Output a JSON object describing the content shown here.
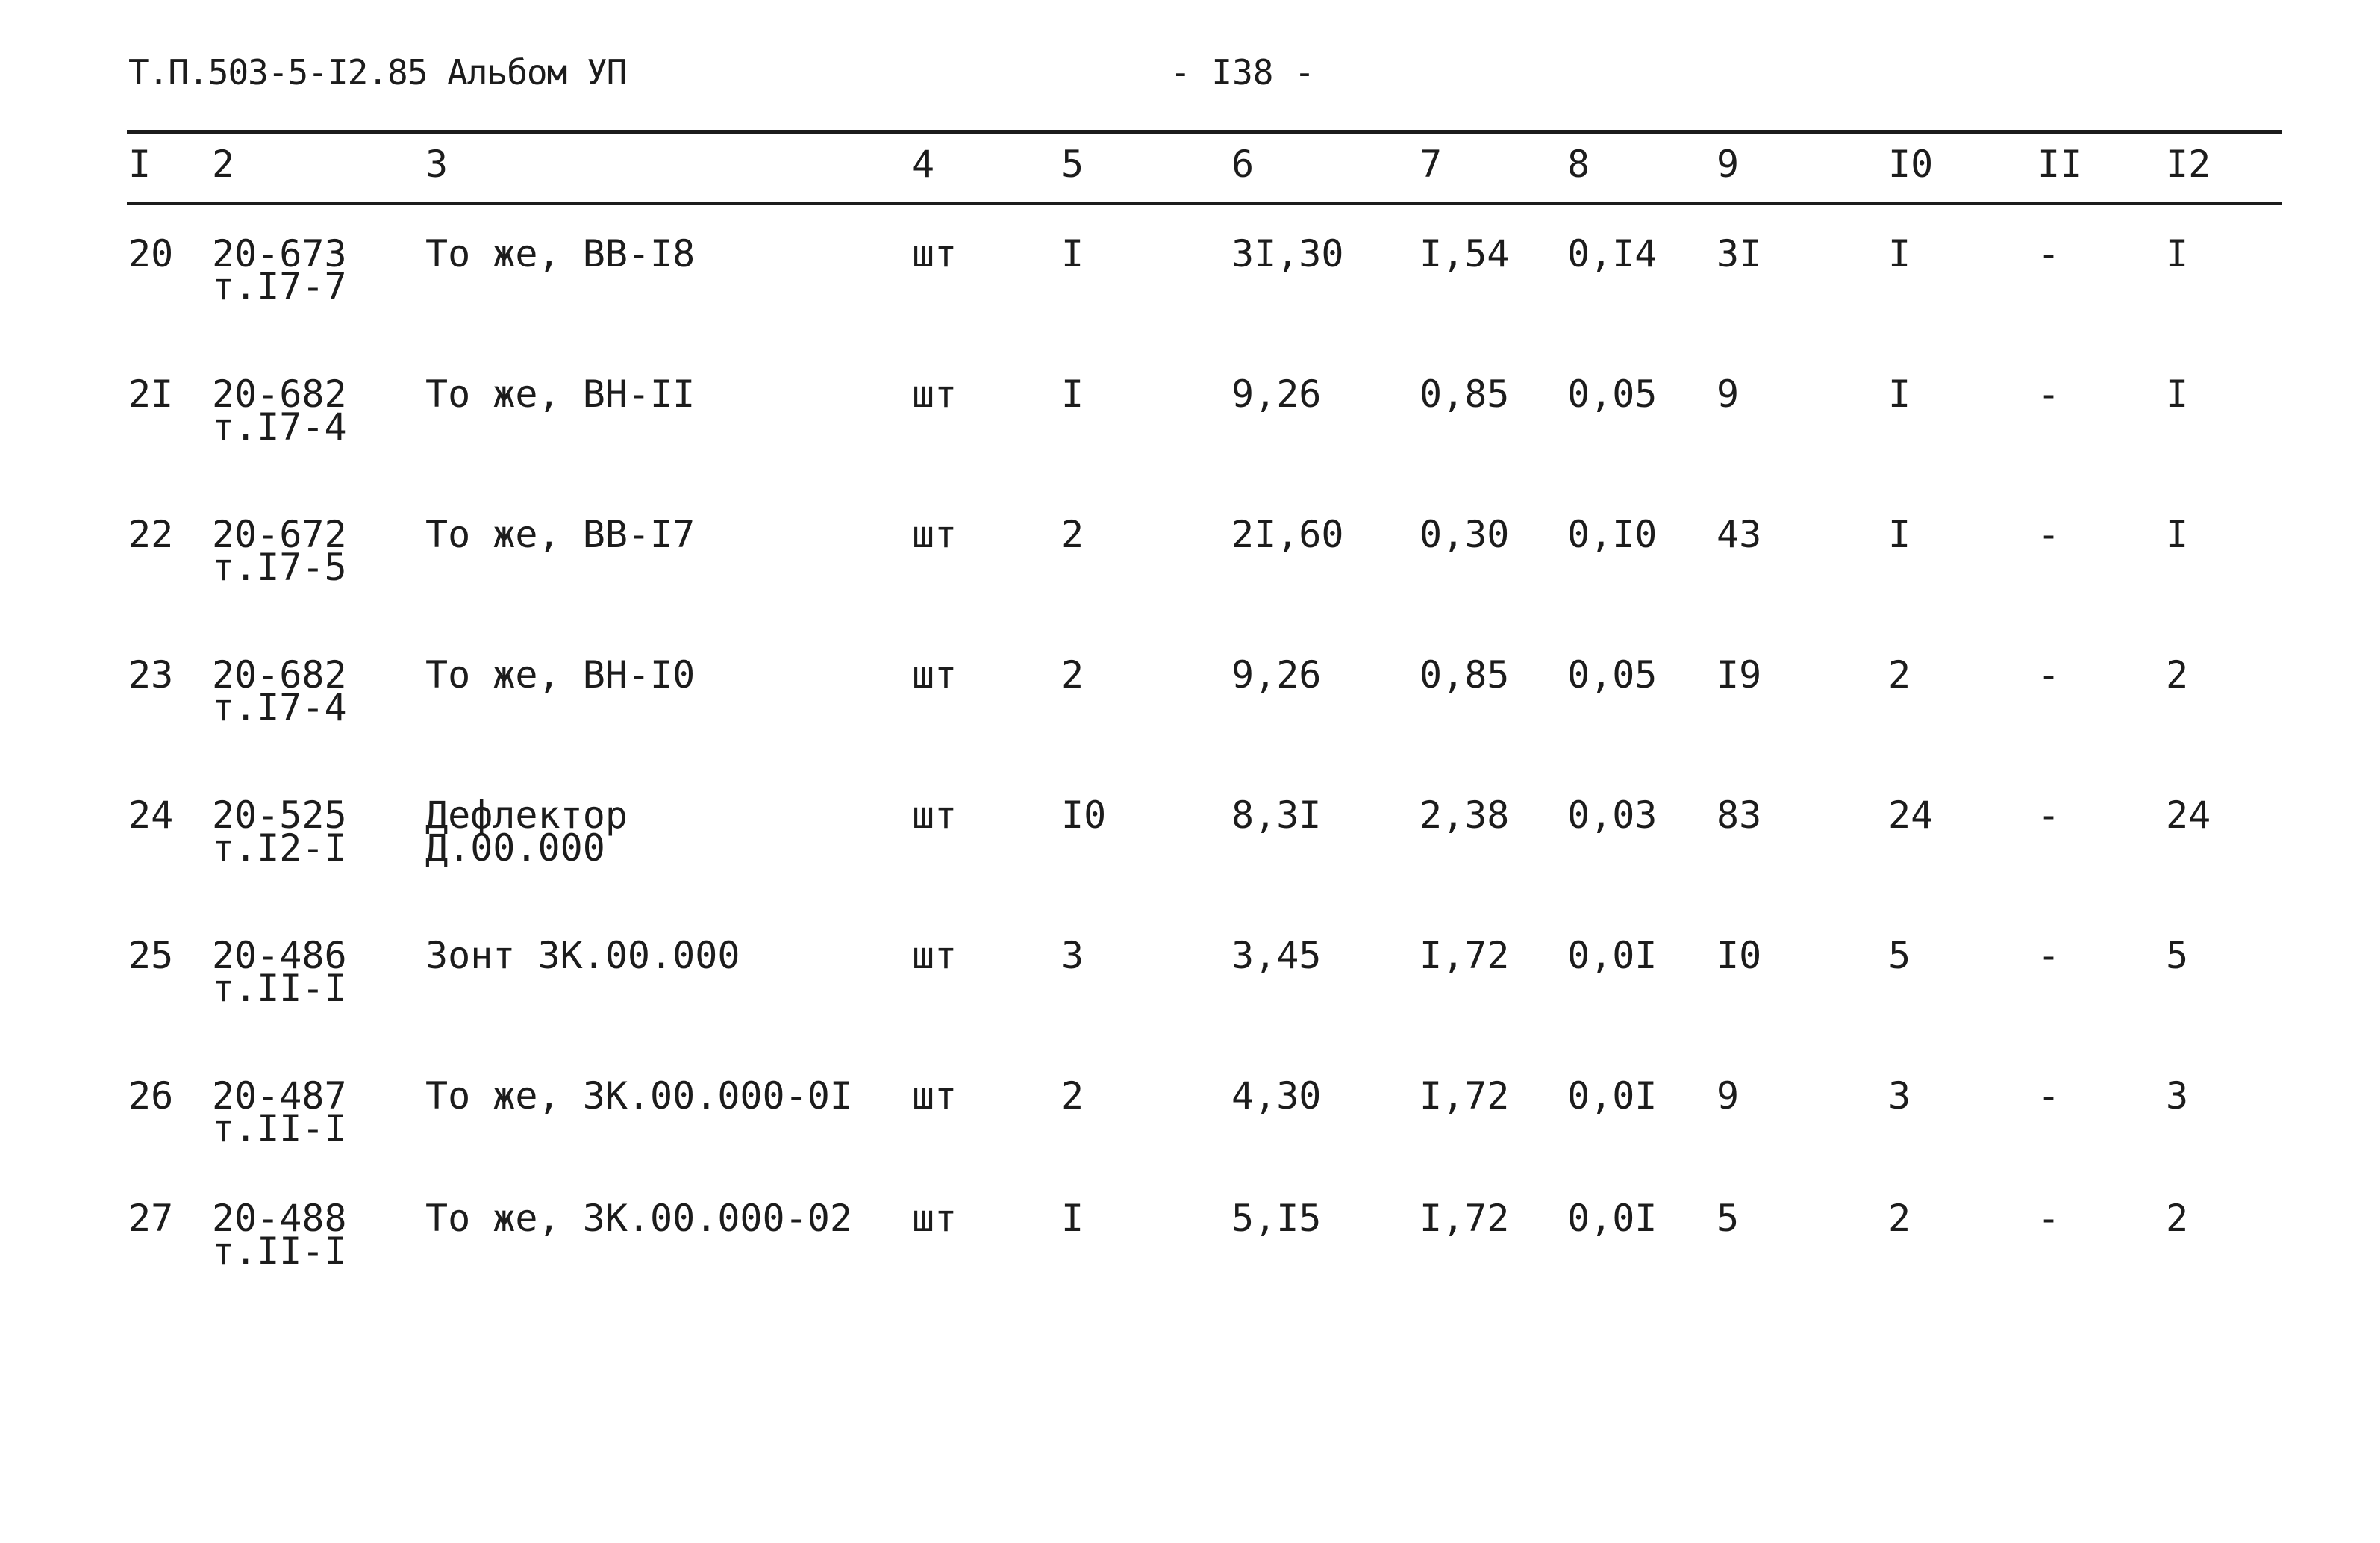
{
  "header": {
    "title": "Т.П.503-5-I2.85 Альбом УП",
    "page_number": "- I38 -"
  },
  "columns": [
    "I",
    "2",
    "3",
    "4",
    "5",
    "6",
    "7",
    "8",
    "9",
    "I0",
    "II",
    "I2"
  ],
  "rows": [
    {
      "no": "20",
      "code": "20-673",
      "ref": "т.I7-7",
      "name": "То же, ВВ-I8",
      "name2": "",
      "unit": "шт",
      "c5": "I",
      "c6": "3I,30",
      "c7": "I,54",
      "c8": "0,I4",
      "c9": "3I",
      "c10": "I",
      "c11": "-",
      "c12": "I"
    },
    {
      "no": "2I",
      "code": "20-682",
      "ref": "т.I7-4",
      "name": "То же, ВН-II",
      "name2": "",
      "unit": "шт",
      "c5": "I",
      "c6": "9,26",
      "c7": "0,85",
      "c8": "0,05",
      "c9": "9",
      "c10": "I",
      "c11": "-",
      "c12": "I"
    },
    {
      "no": "22",
      "code": "20-672",
      "ref": "т.I7-5",
      "name": "То же, ВВ-I7",
      "name2": "",
      "unit": "шт",
      "c5": "2",
      "c6": "2I,60",
      "c7": "0,30",
      "c8": "0,I0",
      "c9": "43",
      "c10": "I",
      "c11": "-",
      "c12": "I"
    },
    {
      "no": "23",
      "code": "20-682",
      "ref": "т.I7-4",
      "name": "То же, ВН-I0",
      "name2": "",
      "unit": "шт",
      "c5": "2",
      "c6": "9,26",
      "c7": "0,85",
      "c8": "0,05",
      "c9": "I9",
      "c10": "2",
      "c11": "-",
      "c12": "2"
    },
    {
      "no": "24",
      "code": "20-525",
      "ref": "т.I2-I",
      "name": "Дефлектор",
      "name2": "Д.00.000",
      "unit": "шт",
      "c5": "I0",
      "c6": "8,3I",
      "c7": "2,38",
      "c8": "0,03",
      "c9": "83",
      "c10": "24",
      "c11": "-",
      "c12": "24"
    },
    {
      "no": "25",
      "code": "20-486",
      "ref": "т.II-I",
      "name": "Зонт ЗК.00.000",
      "name2": "",
      "unit": "шт",
      "c5": "3",
      "c6": "3,45",
      "c7": "I,72",
      "c8": "0,0I",
      "c9": "I0",
      "c10": "5",
      "c11": "-",
      "c12": "5"
    },
    {
      "no": "26",
      "code": "20-487",
      "ref": "т.II-I",
      "name": "То же, ЗК.00.000-0I",
      "name2": "",
      "unit": "шт",
      "c5": "2",
      "c6": "4,30",
      "c7": "I,72",
      "c8": "0,0I",
      "c9": "9",
      "c10": "3",
      "c11": "-",
      "c12": "3"
    },
    {
      "no": "27",
      "code": "20-488",
      "ref": "т.II-I",
      "name": "То же, ЗК.00.000-02",
      "name2": "",
      "unit": "шт",
      "c5": "I",
      "c6": "5,I5",
      "c7": "I,72",
      "c8": "0,0I",
      "c9": "5",
      "c10": "2",
      "c11": "-",
      "c12": "2"
    }
  ]
}
